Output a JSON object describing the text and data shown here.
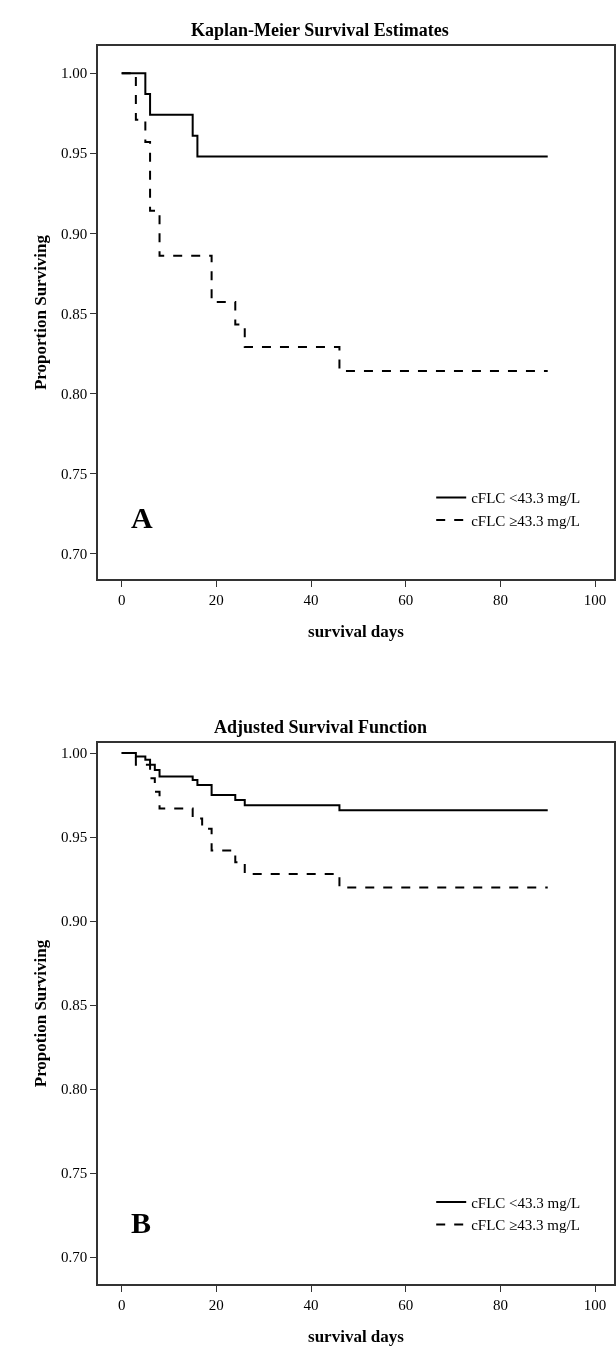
{
  "chart_data": [
    {
      "type": "step",
      "title": "Kaplan-Meier Survival Estimates",
      "xlabel": "survival days",
      "ylabel": "Proportion Surviving",
      "annotations": [
        "A"
      ],
      "xlim": [
        -5,
        104
      ],
      "xticks": [
        0,
        20,
        40,
        60,
        80,
        100
      ],
      "ylim": [
        0.684,
        1.017
      ],
      "yticks": [
        {
          "value": 0.7,
          "label": "0.70"
        },
        {
          "value": 0.75,
          "label": "0.75"
        },
        {
          "value": 0.8,
          "label": "0.80"
        },
        {
          "value": 0.85,
          "label": "0.85"
        },
        {
          "value": 0.9,
          "label": "0.90"
        },
        {
          "value": 0.95,
          "label": "0.95"
        },
        {
          "value": 1.0,
          "label": "1.00"
        }
      ],
      "legend": "bottom right",
      "marker": "none",
      "series": [
        {
          "name": "cFLC <43.3 mg/L",
          "color": "#000000",
          "line_style": "solid",
          "x": [
            0,
            5,
            6,
            15,
            16,
            90
          ],
          "values": [
            1.0,
            0.987,
            0.974,
            0.961,
            0.948,
            0.948
          ]
        },
        {
          "name": "cFLC ≥43.3 mg/L",
          "color": "#000000",
          "line_style": "dashed",
          "x": [
            0,
            3,
            5,
            6,
            8,
            19,
            24,
            26,
            46,
            90
          ],
          "values": [
            1.0,
            0.971,
            0.957,
            0.914,
            0.886,
            0.857,
            0.843,
            0.829,
            0.814,
            0.814
          ]
        }
      ]
    },
    {
      "type": "step",
      "title": "Adjusted Survival Function",
      "xlabel": "survival days",
      "ylabel": "Propotion Surviving",
      "annotations": [
        "B"
      ],
      "xlim": [
        -5,
        104
      ],
      "xticks": [
        0,
        20,
        40,
        60,
        80,
        100
      ],
      "ylim": [
        0.684,
        1.006
      ],
      "yticks": [
        {
          "value": 0.7,
          "label": "0.70"
        },
        {
          "value": 0.75,
          "label": "0.75"
        },
        {
          "value": 0.8,
          "label": "0.80"
        },
        {
          "value": 0.85,
          "label": "0.85"
        },
        {
          "value": 0.9,
          "label": "0.90"
        },
        {
          "value": 0.95,
          "label": "0.95"
        },
        {
          "value": 1.0,
          "label": "1.00"
        }
      ],
      "legend": "bottom right",
      "marker": "none",
      "series": [
        {
          "name": "cFLC <43.3 mg/L",
          "color": "#000000",
          "line_style": "solid",
          "x": [
            0,
            3,
            5,
            6,
            7,
            8,
            15,
            16,
            19,
            24,
            26,
            46,
            90
          ],
          "values": [
            1.0,
            0.998,
            0.996,
            0.993,
            0.99,
            0.986,
            0.984,
            0.981,
            0.975,
            0.972,
            0.969,
            0.966,
            0.966
          ]
        },
        {
          "name": "cFLC ≥43.3 mg/L",
          "color": "#000000",
          "line_style": "dashed",
          "x": [
            0,
            3,
            6,
            7,
            8,
            15,
            17,
            19,
            24,
            26,
            46,
            90
          ],
          "values": [
            1.0,
            0.993,
            0.985,
            0.977,
            0.967,
            0.961,
            0.955,
            0.942,
            0.935,
            0.928,
            0.92,
            0.92
          ]
        }
      ]
    }
  ]
}
